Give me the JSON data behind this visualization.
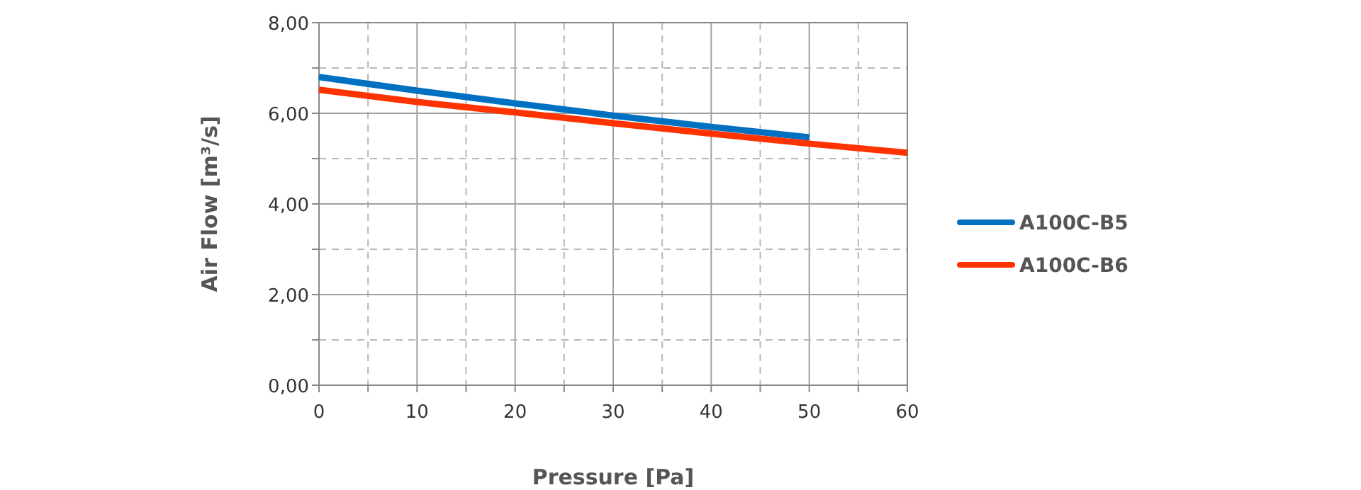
{
  "chart_data": {
    "type": "line",
    "xlabel": "Pressure [Pa]",
    "ylabel": "Air Flow [m³/s]",
    "xlim": [
      0,
      60
    ],
    "ylim": [
      0,
      8
    ],
    "xticks": [
      0,
      {
        "value": 5,
        "label": null
      },
      10,
      {
        "value": 15,
        "label": null
      },
      20,
      {
        "value": 25,
        "label": null
      },
      30,
      {
        "value": 35,
        "label": null
      },
      40,
      {
        "value": 45,
        "label": null
      },
      50,
      {
        "value": 55,
        "label": null
      },
      60
    ],
    "yticks": [
      {
        "value": 0,
        "label": "0,00"
      },
      {
        "value": 1,
        "label": null
      },
      {
        "value": 2,
        "label": "2,00"
      },
      {
        "value": 3,
        "label": null
      },
      {
        "value": 4,
        "label": "4,00"
      },
      {
        "value": 5,
        "label": null
      },
      {
        "value": 6,
        "label": "6,00"
      },
      {
        "value": 7,
        "label": null
      },
      {
        "value": 8,
        "label": "8,00"
      }
    ],
    "grid": true,
    "legend": "right",
    "marker": "none",
    "line_style": "solid",
    "series": [
      {
        "name": "A100C-B5",
        "color": "#0070c0",
        "x": [
          0,
          10,
          20,
          30,
          40,
          50
        ],
        "values": [
          6.8,
          6.5,
          6.22,
          5.95,
          5.7,
          5.47
        ]
      },
      {
        "name": "A100C-B6",
        "color": "#ff3300",
        "x": [
          0,
          10,
          20,
          30,
          40,
          50,
          60
        ],
        "values": [
          6.52,
          6.25,
          6.02,
          5.78,
          5.55,
          5.33,
          5.13
        ]
      }
    ]
  }
}
